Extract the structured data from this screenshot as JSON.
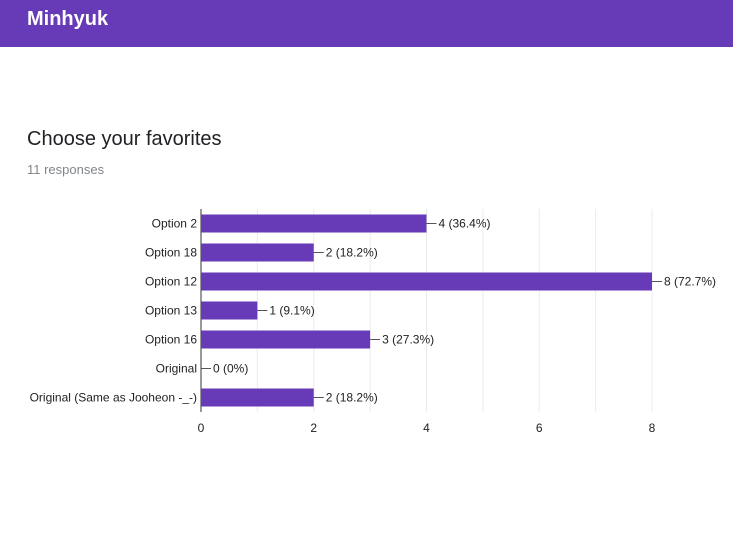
{
  "header": {
    "title": "Minhyuk"
  },
  "question": {
    "title": "Choose your favorites",
    "responses": "11 responses"
  },
  "colors": {
    "header": "#673ab7",
    "bar": "#673ab7",
    "grid": "#ebebeb"
  },
  "chart_data": {
    "type": "bar",
    "orientation": "horizontal",
    "categories": [
      "Option 2",
      "Option 18",
      "Option 12",
      "Option 13",
      "Option 16",
      "Original",
      "Original (Same as Jooheon -_-)"
    ],
    "values": [
      4,
      2,
      8,
      1,
      3,
      0,
      2
    ],
    "data_labels": [
      "4 (36.4%)",
      "2 (18.2%)",
      "8 (72.7%)",
      "1 (9.1%)",
      "3 (27.3%)",
      "0 (0%)",
      "2 (18.2%)"
    ],
    "xlim": [
      0,
      8
    ],
    "x_ticks": [
      0,
      2,
      4,
      6,
      8
    ],
    "grid": true,
    "title": "",
    "xlabel": "",
    "ylabel": ""
  }
}
